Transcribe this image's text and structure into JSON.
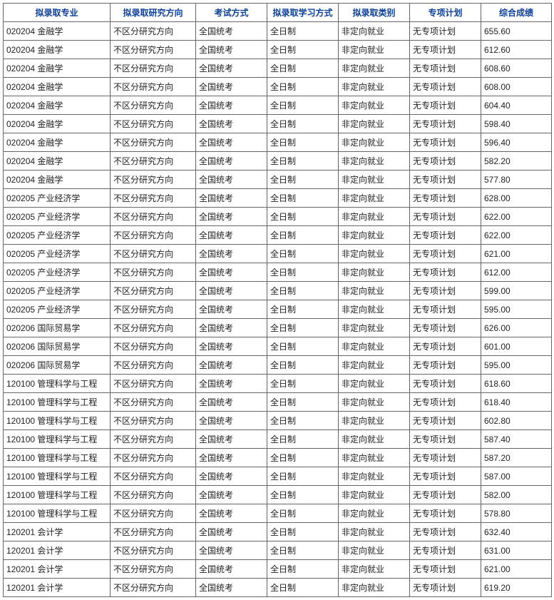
{
  "columns": [
    "拟录取专业",
    "拟录取研究方向",
    "考试方式",
    "拟录取学习方式",
    "拟录取类别",
    "专项计划",
    "综合成绩"
  ],
  "rows": [
    [
      "020204 金融学",
      "不区分研究方向",
      "全国统考",
      "全日制",
      "非定向就业",
      "无专项计划",
      "655.60"
    ],
    [
      "020204 金融学",
      "不区分研究方向",
      "全国统考",
      "全日制",
      "非定向就业",
      "无专项计划",
      "612.60"
    ],
    [
      "020204 金融学",
      "不区分研究方向",
      "全国统考",
      "全日制",
      "非定向就业",
      "无专项计划",
      "608.60"
    ],
    [
      "020204 金融学",
      "不区分研究方向",
      "全国统考",
      "全日制",
      "非定向就业",
      "无专项计划",
      "608.00"
    ],
    [
      "020204 金融学",
      "不区分研究方向",
      "全国统考",
      "全日制",
      "非定向就业",
      "无专项计划",
      "604.40"
    ],
    [
      "020204 金融学",
      "不区分研究方向",
      "全国统考",
      "全日制",
      "非定向就业",
      "无专项计划",
      "598.40"
    ],
    [
      "020204 金融学",
      "不区分研究方向",
      "全国统考",
      "全日制",
      "非定向就业",
      "无专项计划",
      "596.40"
    ],
    [
      "020204 金融学",
      "不区分研究方向",
      "全国统考",
      "全日制",
      "非定向就业",
      "无专项计划",
      "582.20"
    ],
    [
      "020204 金融学",
      "不区分研究方向",
      "全国统考",
      "全日制",
      "非定向就业",
      "无专项计划",
      "577.80"
    ],
    [
      "020205 产业经济学",
      "不区分研究方向",
      "全国统考",
      "全日制",
      "非定向就业",
      "无专项计划",
      "628.00"
    ],
    [
      "020205 产业经济学",
      "不区分研究方向",
      "全国统考",
      "全日制",
      "非定向就业",
      "无专项计划",
      "622.00"
    ],
    [
      "020205 产业经济学",
      "不区分研究方向",
      "全国统考",
      "全日制",
      "非定向就业",
      "无专项计划",
      "622.00"
    ],
    [
      "020205 产业经济学",
      "不区分研究方向",
      "全国统考",
      "全日制",
      "非定向就业",
      "无专项计划",
      "621.00"
    ],
    [
      "020205 产业经济学",
      "不区分研究方向",
      "全国统考",
      "全日制",
      "非定向就业",
      "无专项计划",
      "612.00"
    ],
    [
      "020205 产业经济学",
      "不区分研究方向",
      "全国统考",
      "全日制",
      "非定向就业",
      "无专项计划",
      "599.00"
    ],
    [
      "020205 产业经济学",
      "不区分研究方向",
      "全国统考",
      "全日制",
      "非定向就业",
      "无专项计划",
      "595.00"
    ],
    [
      "020206 国际贸易学",
      "不区分研究方向",
      "全国统考",
      "全日制",
      "非定向就业",
      "无专项计划",
      "626.00"
    ],
    [
      "020206 国际贸易学",
      "不区分研究方向",
      "全国统考",
      "全日制",
      "非定向就业",
      "无专项计划",
      "601.00"
    ],
    [
      "020206 国际贸易学",
      "不区分研究方向",
      "全国统考",
      "全日制",
      "非定向就业",
      "无专项计划",
      "595.00"
    ],
    [
      "120100 管理科学与工程",
      "不区分研究方向",
      "全国统考",
      "全日制",
      "非定向就业",
      "无专项计划",
      "618.60"
    ],
    [
      "120100 管理科学与工程",
      "不区分研究方向",
      "全国统考",
      "全日制",
      "非定向就业",
      "无专项计划",
      "618.40"
    ],
    [
      "120100 管理科学与工程",
      "不区分研究方向",
      "全国统考",
      "全日制",
      "非定向就业",
      "无专项计划",
      "602.80"
    ],
    [
      "120100 管理科学与工程",
      "不区分研究方向",
      "全国统考",
      "全日制",
      "非定向就业",
      "无专项计划",
      "587.40"
    ],
    [
      "120100 管理科学与工程",
      "不区分研究方向",
      "全国统考",
      "全日制",
      "非定向就业",
      "无专项计划",
      "587.20"
    ],
    [
      "120100 管理科学与工程",
      "不区分研究方向",
      "全国统考",
      "全日制",
      "非定向就业",
      "无专项计划",
      "587.00"
    ],
    [
      "120100 管理科学与工程",
      "不区分研究方向",
      "全国统考",
      "全日制",
      "非定向就业",
      "无专项计划",
      "582.00"
    ],
    [
      "120100 管理科学与工程",
      "不区分研究方向",
      "全国统考",
      "全日制",
      "非定向就业",
      "无专项计划",
      "578.80"
    ],
    [
      "120201 会计学",
      "不区分研究方向",
      "全国统考",
      "全日制",
      "非定向就业",
      "无专项计划",
      "632.40"
    ],
    [
      "120201 会计学",
      "不区分研究方向",
      "全国统考",
      "全日制",
      "非定向就业",
      "无专项计划",
      "631.00"
    ],
    [
      "120201 会计学",
      "不区分研究方向",
      "全国统考",
      "全日制",
      "非定向就业",
      "无专项计划",
      "621.00"
    ],
    [
      "120201 会计学",
      "不区分研究方向",
      "全国统考",
      "全日制",
      "非定向就业",
      "无专项计划",
      "619.20"
    ]
  ]
}
